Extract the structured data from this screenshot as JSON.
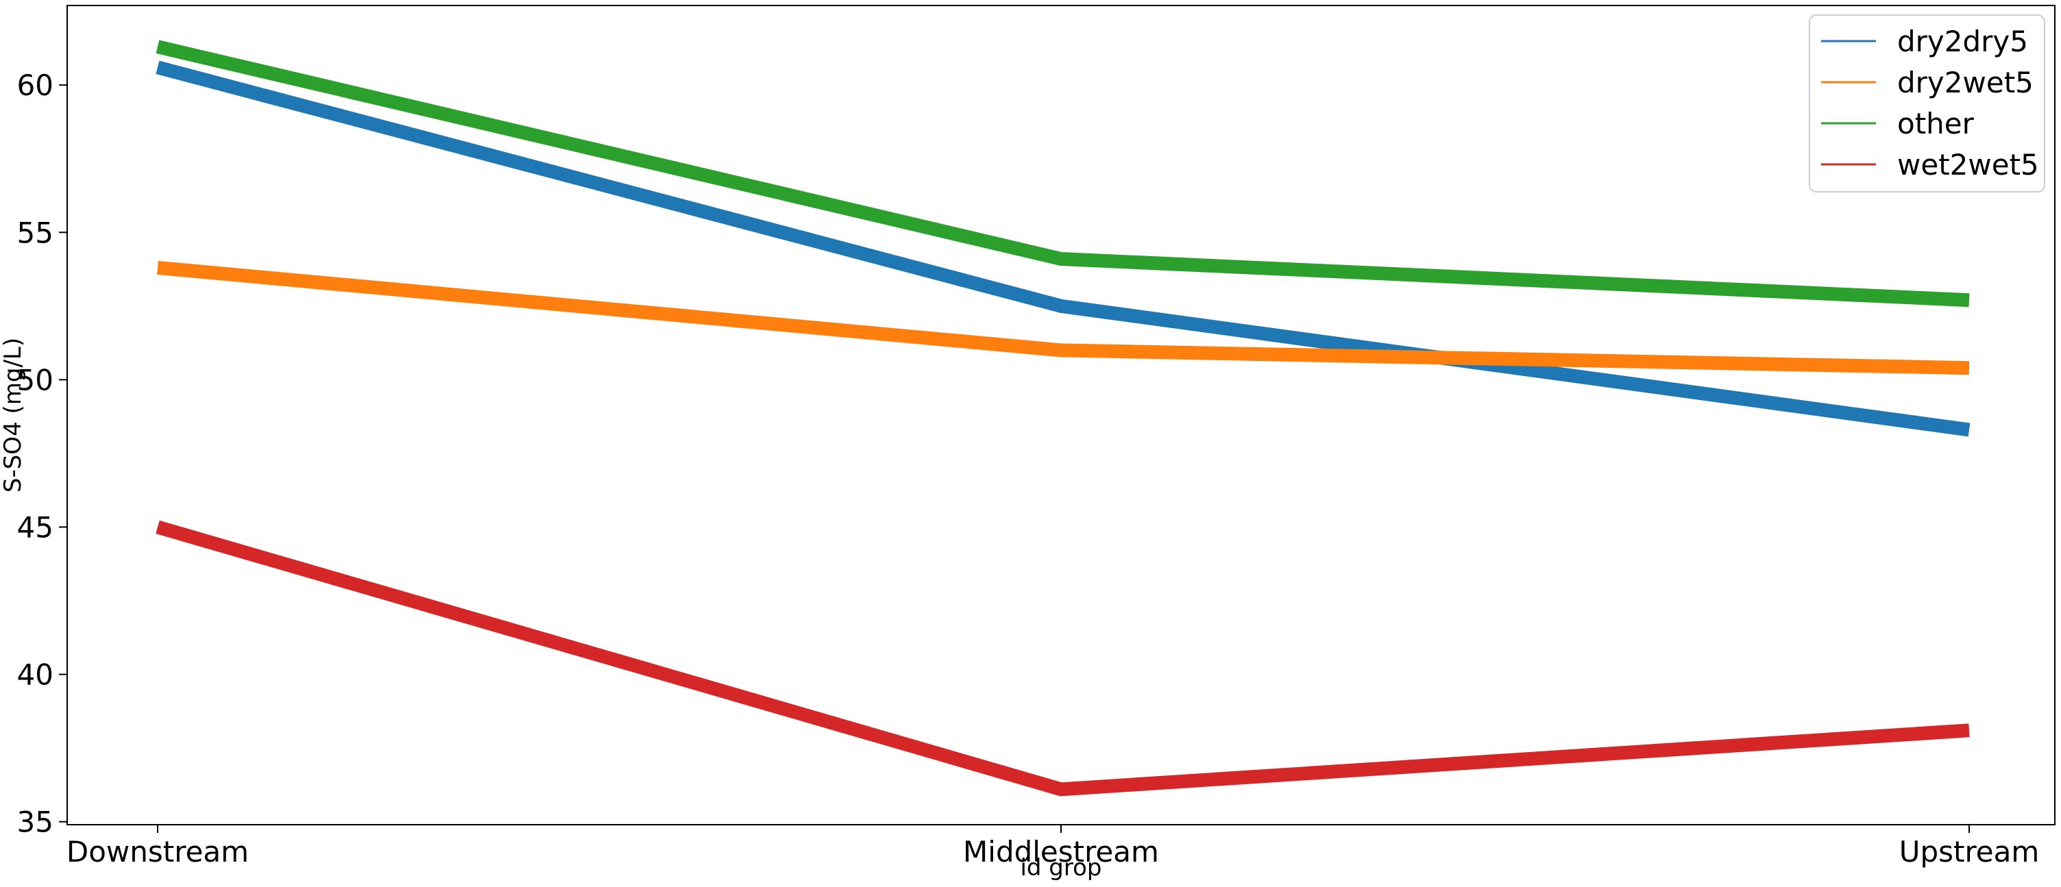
{
  "chart_data": {
    "type": "line",
    "categories": [
      "Downstream",
      "Middlestream",
      "Upstream"
    ],
    "series": [
      {
        "name": "dry2dry5",
        "color": "#1f77b4",
        "values": [
          60.6,
          52.5,
          48.3
        ]
      },
      {
        "name": "dry2wet5",
        "color": "#ff7f0e",
        "values": [
          53.8,
          51.0,
          50.4
        ]
      },
      {
        "name": "other",
        "color": "#2ca02c",
        "values": [
          61.3,
          54.1,
          52.7
        ]
      },
      {
        "name": "wet2wet5",
        "color": "#d62728",
        "values": [
          45.0,
          36.1,
          38.1
        ]
      }
    ],
    "xlabel": "id grop",
    "ylabel": "S-SO4 (mg/L)",
    "ylim": [
      34.9,
      62.7
    ],
    "yticks": [
      35,
      40,
      45,
      50,
      55,
      60
    ],
    "grid": false,
    "legend_position": "top-right"
  }
}
